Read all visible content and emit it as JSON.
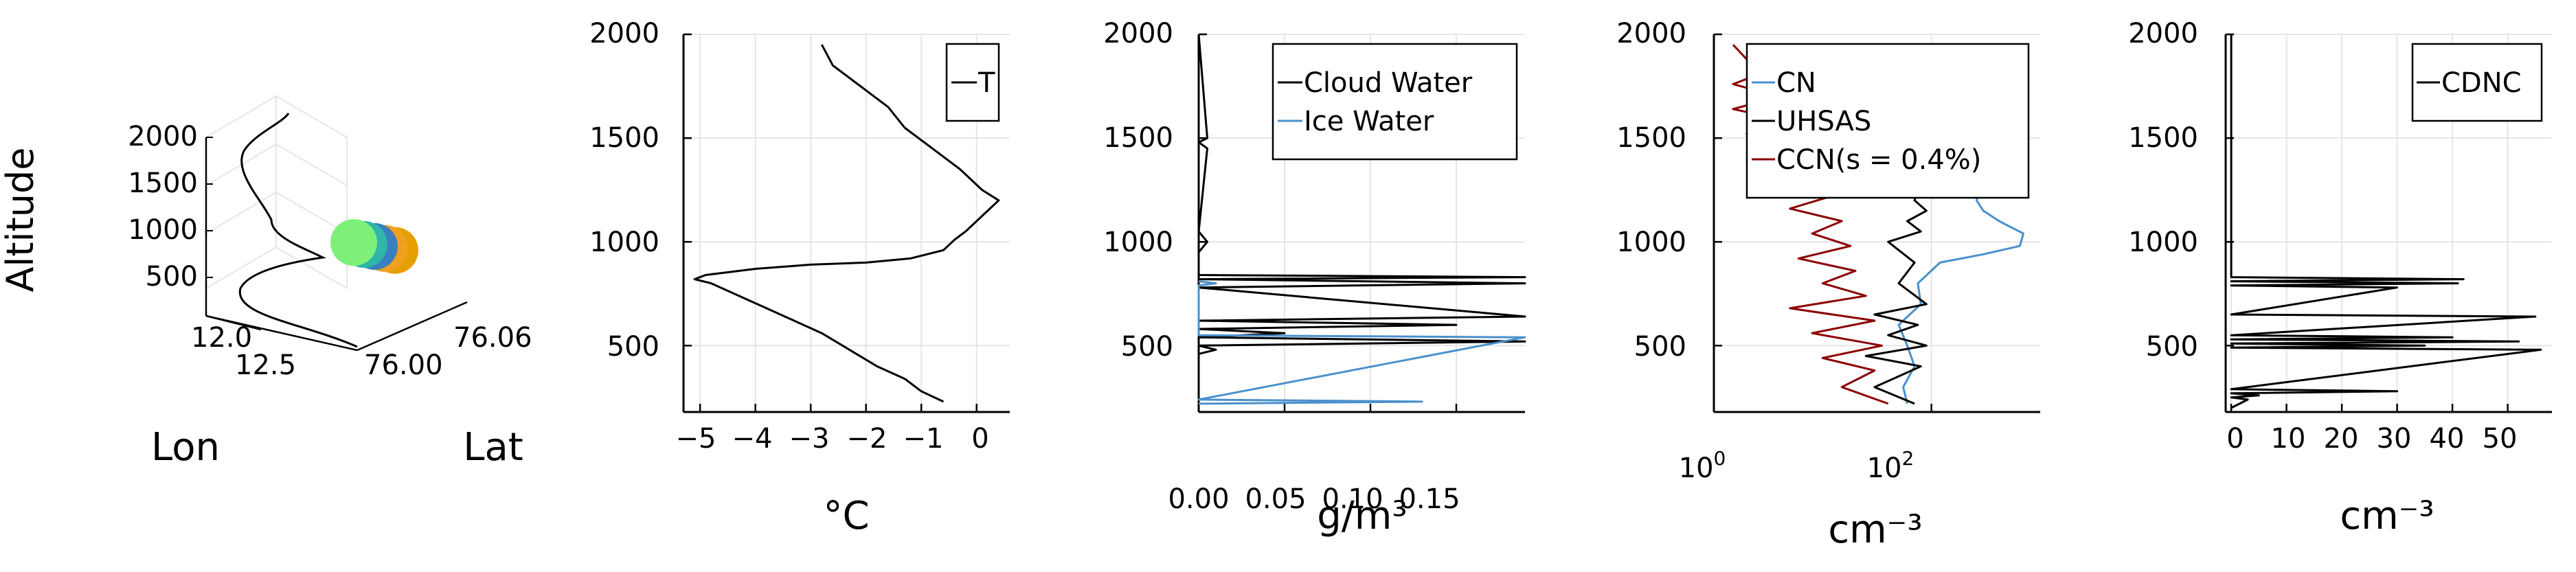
{
  "chart_data": [
    {
      "type": "line3d",
      "title": "",
      "xlabel": "Lon",
      "ylabel": "Lat",
      "zlabel": "Altitude",
      "xticks": [
        "12.0",
        "12.5"
      ],
      "yticks": [
        "76.00",
        "76.06"
      ],
      "zticks": [
        "500",
        "1000",
        "1500",
        "2000"
      ],
      "zlim": [
        200,
        2000
      ],
      "track": {
        "color": "#000000",
        "altitudes": [
          250,
          500,
          700,
          900,
          1100,
          1300,
          1500,
          1700,
          1900
        ]
      },
      "markers": {
        "altitudes": [
          860,
          880,
          900,
          920,
          940
        ],
        "colors": [
          "#e69f00",
          "#f0a020",
          "#3a7fc0",
          "#2fb6a8",
          "#7ef07a"
        ]
      }
    },
    {
      "type": "line",
      "xlabel": "°C",
      "ylabel": "",
      "xlim": [
        -5.3,
        0.6
      ],
      "ylim": [
        180,
        2000
      ],
      "xticks": [
        "−5",
        "−4",
        "−3",
        "−2",
        "−1",
        "0"
      ],
      "yticks": [
        "500",
        "1000",
        "1500",
        "2000"
      ],
      "legend_position": "top-right",
      "series": [
        {
          "name": "T",
          "color": "#000000",
          "x": [
            -0.6,
            -1.0,
            -1.3,
            -1.8,
            -2.3,
            -2.8,
            -3.3,
            -3.8,
            -4.3,
            -4.8,
            -5.1,
            -4.9,
            -4.0,
            -3.0,
            -2.0,
            -1.2,
            -0.6,
            -0.4,
            -0.2,
            0.0,
            0.2,
            0.4,
            0.1,
            -0.3,
            -0.8,
            -1.3,
            -1.6,
            -2.1,
            -2.6,
            -2.8
          ],
          "y": [
            230,
            280,
            340,
            400,
            480,
            560,
            620,
            680,
            740,
            800,
            820,
            840,
            870,
            890,
            900,
            920,
            960,
            1010,
            1050,
            1100,
            1150,
            1200,
            1250,
            1350,
            1450,
            1550,
            1650,
            1750,
            1850,
            1950
          ]
        }
      ]
    },
    {
      "type": "line",
      "xlabel": "g/m³",
      "ylabel": "",
      "xlim": [
        0,
        0.19
      ],
      "ylim": [
        180,
        2000
      ],
      "xticks": [
        "0.00",
        "0.05",
        "0.10",
        "0.15"
      ],
      "yticks": [
        "500",
        "1000",
        "1500",
        "2000"
      ],
      "legend_position": "top-right",
      "series": [
        {
          "name": "Cloud Water",
          "color": "#000000",
          "x": [
            0.0,
            0.0,
            0.01,
            0.0,
            0.19,
            0.0,
            0.05,
            0.0,
            0.15,
            0.0,
            0.19,
            0.0,
            0.19,
            0.0,
            0.19,
            0.0,
            0.0,
            0.005,
            0.0,
            0.005,
            0.0,
            0.005,
            0.0
          ],
          "y": [
            200,
            460,
            480,
            500,
            520,
            540,
            560,
            580,
            600,
            620,
            640,
            780,
            800,
            820,
            830,
            840,
            950,
            1000,
            1050,
            1450,
            1480,
            1500,
            2000
          ]
        },
        {
          "name": "Ice Water",
          "color": "#4a90cc",
          "x": [
            0.0,
            0.13,
            0.0,
            0.19,
            0.0,
            0.0,
            0.01,
            0.0
          ],
          "y": [
            220,
            230,
            240,
            540,
            550,
            790,
            800,
            810
          ]
        }
      ]
    },
    {
      "type": "line",
      "xlabel": "cm⁻³",
      "ylabel": "",
      "xscale": "log",
      "xlim": [
        1,
        1000
      ],
      "ylim": [
        180,
        2000
      ],
      "xticks": [
        "10",
        "10"
      ],
      "xtick_exponents": [
        "0",
        "2"
      ],
      "yticks": [
        "500",
        "1000",
        "1500",
        "2000"
      ],
      "legend_position": "top-right",
      "series": [
        {
          "name": "CN",
          "color": "#4a90cc",
          "x": [
            60,
            55,
            70,
            60,
            50,
            80,
            75,
            120,
            300,
            650,
            700,
            420,
            300,
            260,
            300,
            250,
            200,
            180
          ],
          "y": [
            220,
            300,
            400,
            500,
            600,
            700,
            800,
            900,
            940,
            980,
            1040,
            1100,
            1150,
            1200,
            1300,
            1400,
            1500,
            1600
          ]
        },
        {
          "name": "UHSAS",
          "color": "#000000",
          "x": [
            70,
            30,
            80,
            25,
            90,
            40,
            75,
            30,
            90,
            50,
            70,
            40,
            80,
            60,
            90,
            70,
            80,
            75
          ],
          "y": [
            220,
            300,
            400,
            450,
            500,
            550,
            600,
            650,
            700,
            800,
            900,
            1000,
            1050,
            1100,
            1150,
            1200,
            1300,
            1380
          ]
        },
        {
          "name": "CCN(s = 0.4%)",
          "color": "#8b0000",
          "x": [
            40,
            15,
            30,
            10,
            35,
            8,
            30,
            5,
            25,
            10,
            20,
            6,
            18,
            8,
            15,
            5,
            12,
            4,
            10,
            3,
            8,
            2,
            5,
            1.5,
            4,
            1.5,
            3,
            2,
            1.5
          ],
          "y": [
            220,
            300,
            380,
            440,
            500,
            560,
            620,
            680,
            740,
            800,
            860,
            920,
            980,
            1040,
            1100,
            1160,
            1220,
            1280,
            1340,
            1400,
            1460,
            1520,
            1580,
            1640,
            1700,
            1760,
            1820,
            1880,
            1950
          ]
        }
      ]
    },
    {
      "type": "line",
      "xlabel": "cm⁻³",
      "ylabel": "",
      "xlim": [
        -1,
        58
      ],
      "ylim": [
        180,
        2000
      ],
      "xticks": [
        "0",
        "10",
        "20",
        "30",
        "40",
        "50"
      ],
      "yticks": [
        "500",
        "1000",
        "1500",
        "2000"
      ],
      "legend_position": "top-right",
      "series": [
        {
          "name": "CDNC",
          "color": "#000000",
          "x": [
            0,
            3,
            0,
            5,
            0,
            30,
            0,
            56,
            0,
            35,
            0,
            52,
            0,
            40,
            0,
            55,
            0,
            30,
            0,
            41,
            0,
            42,
            0,
            0,
            0
          ],
          "y": [
            200,
            240,
            250,
            260,
            270,
            280,
            290,
            480,
            490,
            500,
            510,
            520,
            530,
            540,
            550,
            640,
            650,
            780,
            790,
            800,
            810,
            820,
            830,
            1950,
            2000
          ]
        }
      ]
    }
  ]
}
